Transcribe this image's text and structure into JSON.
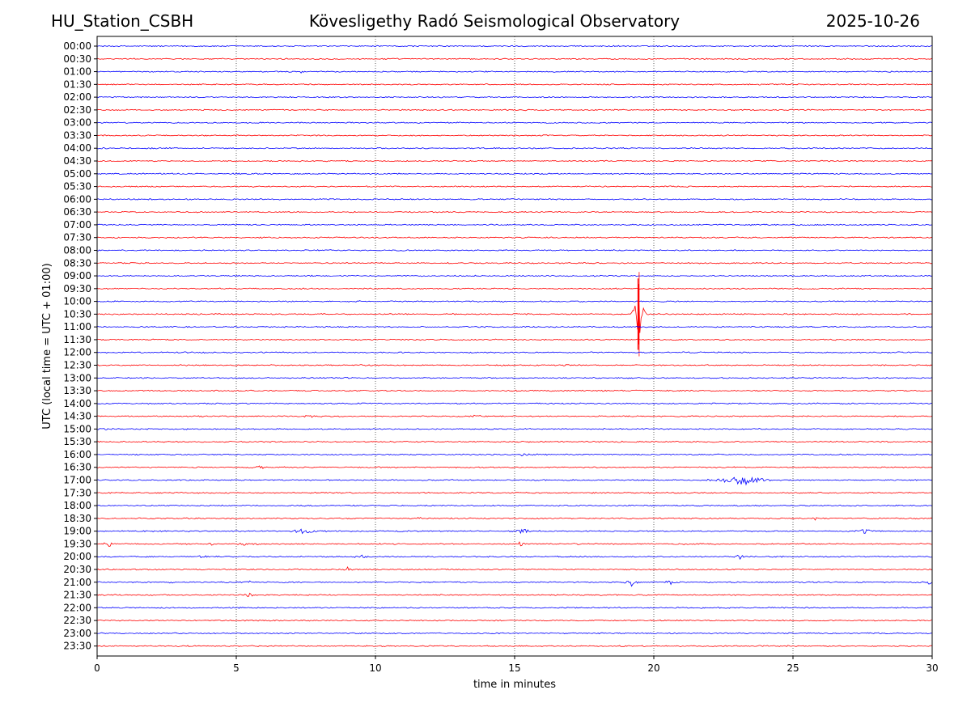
{
  "header": {
    "station": "HU_Station_CSBH",
    "observatory": "Kövesligethy Radó Seismological Observatory",
    "date": "2025-10-26"
  },
  "colors": {
    "trace_a": "#0000ff",
    "trace_b": "#ff0000",
    "axes": "#000000",
    "grid": "#000000"
  },
  "chart_data": {
    "type": "line",
    "title": "Kövesligethy Radó Seismological Observatory",
    "xlabel": "time in minutes",
    "ylabel": "UTC (local time = UTC + 01:00)",
    "xlim": [
      0,
      30
    ],
    "x_ticks": [
      "0",
      "5",
      "10",
      "15",
      "20",
      "25",
      "30"
    ],
    "x_tick_values": [
      0,
      5,
      10,
      15,
      20,
      25,
      30
    ],
    "grid_x": [
      5,
      10,
      15,
      20,
      25
    ],
    "rows": [
      "00:00",
      "00:30",
      "01:00",
      "01:30",
      "02:00",
      "02:30",
      "03:00",
      "03:30",
      "04:00",
      "04:30",
      "05:00",
      "05:30",
      "06:00",
      "06:30",
      "07:00",
      "07:30",
      "08:00",
      "08:30",
      "09:00",
      "09:30",
      "10:00",
      "10:30",
      "11:00",
      "11:30",
      "12:00",
      "12:30",
      "13:00",
      "13:30",
      "14:00",
      "14:30",
      "15:00",
      "15:30",
      "16:00",
      "16:30",
      "17:00",
      "17:30",
      "18:00",
      "18:30",
      "19:00",
      "19:30",
      "20:00",
      "20:30",
      "21:00",
      "21:30",
      "22:00",
      "22:30",
      "23:00",
      "23:30"
    ],
    "noise_amplitude": 0.04,
    "events": [
      {
        "row": "10:30",
        "minute": 19.45,
        "amplitude": 3.3,
        "duration": 0.3
      },
      {
        "row": "01:00",
        "minute": 7.35,
        "amplitude": 0.25,
        "duration": 0.1
      },
      {
        "row": "14:30",
        "minute": 7.6,
        "amplitude": 0.15,
        "duration": 0.4
      },
      {
        "row": "14:30",
        "minute": 13.6,
        "amplitude": 0.18,
        "duration": 0.4
      },
      {
        "row": "15:00",
        "minute": 0.2,
        "amplitude": 0.15,
        "duration": 0.6
      },
      {
        "row": "16:00",
        "minute": 15.5,
        "amplitude": 0.15,
        "duration": 0.9
      },
      {
        "row": "16:30",
        "minute": 5.8,
        "amplitude": 0.2,
        "duration": 0.4
      },
      {
        "row": "17:00",
        "minute": 23.2,
        "amplitude": 0.45,
        "duration": 1.6
      },
      {
        "row": "18:30",
        "minute": 11.5,
        "amplitude": 0.15,
        "duration": 0.3
      },
      {
        "row": "18:30",
        "minute": 25.8,
        "amplitude": 0.15,
        "duration": 0.3
      },
      {
        "row": "19:00",
        "minute": 7.5,
        "amplitude": 0.25,
        "duration": 1.0
      },
      {
        "row": "19:00",
        "minute": 15.3,
        "amplitude": 0.2,
        "duration": 0.7
      },
      {
        "row": "19:00",
        "minute": 27.6,
        "amplitude": 0.35,
        "duration": 0.4
      },
      {
        "row": "19:30",
        "minute": 0.4,
        "amplitude": 0.25,
        "duration": 0.4
      },
      {
        "row": "19:30",
        "minute": 4.1,
        "amplitude": 0.25,
        "duration": 0.3
      },
      {
        "row": "19:30",
        "minute": 5.3,
        "amplitude": 0.15,
        "duration": 0.5
      },
      {
        "row": "19:30",
        "minute": 15.2,
        "amplitude": 0.2,
        "duration": 0.4
      },
      {
        "row": "19:30",
        "minute": 21.0,
        "amplitude": 0.15,
        "duration": 0.5
      },
      {
        "row": "20:00",
        "minute": 3.8,
        "amplitude": 0.15,
        "duration": 0.6
      },
      {
        "row": "20:00",
        "minute": 9.5,
        "amplitude": 0.2,
        "duration": 0.4
      },
      {
        "row": "20:00",
        "minute": 23.1,
        "amplitude": 0.2,
        "duration": 0.4
      },
      {
        "row": "20:30",
        "minute": 9.0,
        "amplitude": 0.15,
        "duration": 0.3
      },
      {
        "row": "21:00",
        "minute": 2.7,
        "amplitude": 0.15,
        "duration": 0.3
      },
      {
        "row": "21:00",
        "minute": 5.5,
        "amplitude": 0.15,
        "duration": 0.3
      },
      {
        "row": "21:00",
        "minute": 19.2,
        "amplitude": 0.3,
        "duration": 0.5
      },
      {
        "row": "21:00",
        "minute": 20.6,
        "amplitude": 0.25,
        "duration": 0.4
      },
      {
        "row": "21:00",
        "minute": 29.9,
        "amplitude": 0.25,
        "duration": 0.2
      },
      {
        "row": "21:30",
        "minute": 5.5,
        "amplitude": 0.2,
        "duration": 0.4
      }
    ]
  }
}
